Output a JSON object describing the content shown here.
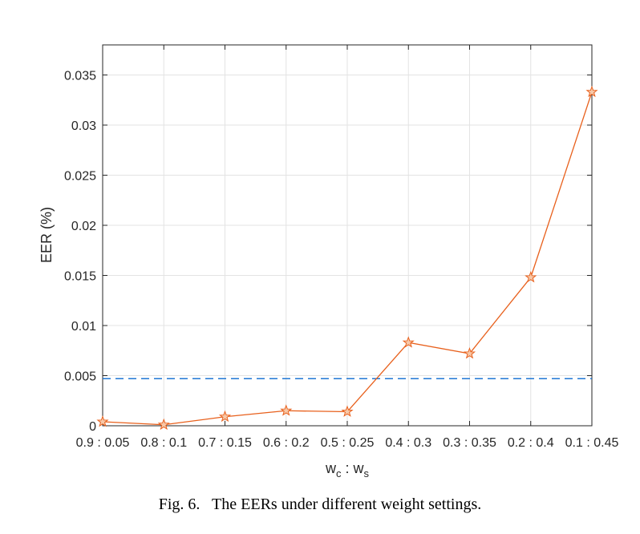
{
  "chart_data": {
    "type": "line",
    "categories": [
      "0.9 : 0.05",
      "0.8 : 0.1",
      "0.7 : 0.15",
      "0.6 : 0.2",
      "0.5 : 0.25",
      "0.4 : 0.3",
      "0.3 : 0.35",
      "0.2 : 0.4",
      "0.1 : 0.45"
    ],
    "series": [
      {
        "values": [
          0.0004,
          0.0001,
          0.0009,
          0.0015,
          0.0014,
          0.0083,
          0.0072,
          0.0148,
          0.0333
        ],
        "color": "#e8601c",
        "marker": "star"
      }
    ],
    "reference_line": {
      "value": 0.0047,
      "color": "#1f77d4",
      "style": "dashed"
    },
    "ylabel": "EER (%)",
    "xlabel": {
      "main_c": "w",
      "sub_c": "c",
      "sep": " : ",
      "main_s": "w",
      "sub_s": "s"
    },
    "ylim": [
      0,
      0.038
    ],
    "yticks": [
      0,
      0.005,
      0.01,
      0.015,
      0.02,
      0.025,
      0.03,
      0.035
    ],
    "ytick_labels": [
      "0",
      "0.005",
      "0.01",
      "0.015",
      "0.02",
      "0.025",
      "0.03",
      "0.035"
    ],
    "grid": true
  },
  "caption": "Fig. 6.   The EERs under different weight settings."
}
